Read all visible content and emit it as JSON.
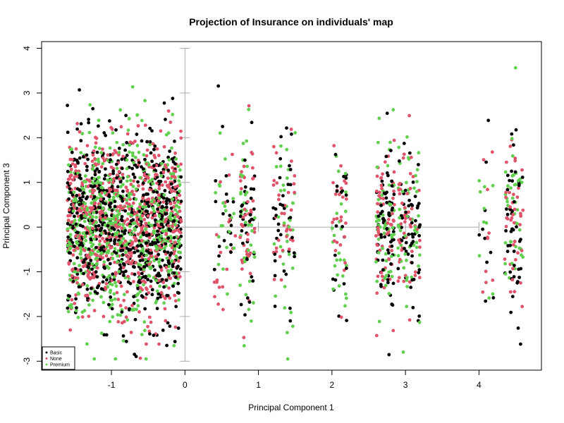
{
  "chart_data": {
    "type": "scatter",
    "title": "Projection of Insurance on individuals' map",
    "xlabel": "Principal Component 1",
    "ylabel": "Principal Component 3",
    "xlim": [
      -1.95,
      4.85
    ],
    "ylim": [
      -3.2,
      4.15
    ],
    "x_ticks": [
      -1,
      0,
      1,
      2,
      3,
      4
    ],
    "y_ticks": [
      -3,
      -2,
      -1,
      0,
      1,
      2,
      3,
      4
    ],
    "x_tick_labels": [
      "-1",
      "0",
      "1",
      "2",
      "3",
      "4"
    ],
    "y_tick_labels": [
      "-3",
      "-2",
      "-1",
      "0",
      "1",
      "2",
      "3",
      "4"
    ],
    "grid": false,
    "legend_position": "bottom-left",
    "legend": [
      {
        "name": "Basic",
        "color": "#000000"
      },
      {
        "name": "None",
        "color": "#DF536B"
      },
      {
        "name": "Premium",
        "color": "#61D04F"
      }
    ],
    "axis_lines": {
      "color": "#aaaaaa",
      "vertical_x": 0,
      "vertical_y_range": [
        -3,
        4
      ],
      "horizontal_y": 0,
      "horizontal_x_range": [
        0,
        4
      ]
    },
    "series": [
      {
        "name": "Basic",
        "color": "#000000",
        "clusters": [
          {
            "x_range": [
              -1.6,
              -0.05
            ],
            "y_mean": 0,
            "y_sd": 1,
            "count": 700
          },
          {
            "x_range": [
              0.4,
              0.7
            ],
            "y_mean": 0,
            "y_sd": 1,
            "count": 20
          },
          {
            "x_range": [
              0.75,
              0.95
            ],
            "y_mean": 0,
            "y_sd": 1,
            "count": 35
          },
          {
            "x_range": [
              1.2,
              1.5
            ],
            "y_mean": 0,
            "y_sd": 1,
            "count": 35
          },
          {
            "x_range": [
              2.0,
              2.2
            ],
            "y_mean": 0,
            "y_sd": 1,
            "count": 20
          },
          {
            "x_range": [
              2.6,
              2.85
            ],
            "y_mean": 0,
            "y_sd": 1,
            "count": 70
          },
          {
            "x_range": [
              2.9,
              3.2
            ],
            "y_mean": 0,
            "y_sd": 1,
            "count": 55
          },
          {
            "x_range": [
              4.0,
              4.2
            ],
            "y_mean": 0,
            "y_sd": 1,
            "count": 10
          },
          {
            "x_range": [
              4.35,
              4.6
            ],
            "y_mean": 0,
            "y_sd": 1,
            "count": 45
          }
        ]
      },
      {
        "name": "None",
        "color": "#DF536B",
        "clusters": [
          {
            "x_range": [
              -1.6,
              -0.05
            ],
            "y_mean": 0,
            "y_sd": 1,
            "count": 650
          },
          {
            "x_range": [
              0.4,
              0.7
            ],
            "y_mean": 0,
            "y_sd": 1,
            "count": 20
          },
          {
            "x_range": [
              0.75,
              0.95
            ],
            "y_mean": 0,
            "y_sd": 1,
            "count": 40
          },
          {
            "x_range": [
              1.2,
              1.5
            ],
            "y_mean": 0,
            "y_sd": 1,
            "count": 35
          },
          {
            "x_range": [
              2.0,
              2.2
            ],
            "y_mean": 0,
            "y_sd": 1,
            "count": 25
          },
          {
            "x_range": [
              2.6,
              2.85
            ],
            "y_mean": 0,
            "y_sd": 1,
            "count": 60
          },
          {
            "x_range": [
              2.9,
              3.2
            ],
            "y_mean": 0,
            "y_sd": 1,
            "count": 50
          },
          {
            "x_range": [
              4.0,
              4.2
            ],
            "y_mean": 0,
            "y_sd": 1,
            "count": 10
          },
          {
            "x_range": [
              4.35,
              4.6
            ],
            "y_mean": 0,
            "y_sd": 1,
            "count": 40
          }
        ]
      },
      {
        "name": "Premium",
        "color": "#61D04F",
        "clusters": [
          {
            "x_range": [
              -1.6,
              -0.05
            ],
            "y_mean": 0,
            "y_sd": 1,
            "count": 650
          },
          {
            "x_range": [
              0.4,
              0.7
            ],
            "y_mean": 0,
            "y_sd": 1,
            "count": 20
          },
          {
            "x_range": [
              0.75,
              0.95
            ],
            "y_mean": 0,
            "y_sd": 1,
            "count": 40
          },
          {
            "x_range": [
              1.2,
              1.5
            ],
            "y_mean": 0,
            "y_sd": 1,
            "count": 35
          },
          {
            "x_range": [
              2.0,
              2.2
            ],
            "y_mean": 0,
            "y_sd": 1,
            "count": 25
          },
          {
            "x_range": [
              2.6,
              2.85
            ],
            "y_mean": 0,
            "y_sd": 1,
            "count": 60
          },
          {
            "x_range": [
              2.9,
              3.2
            ],
            "y_mean": 0,
            "y_sd": 1,
            "count": 50
          },
          {
            "x_range": [
              4.0,
              4.2
            ],
            "y_mean": 0,
            "y_sd": 1,
            "count": 10
          },
          {
            "x_range": [
              4.35,
              4.6
            ],
            "y_mean": 0,
            "y_sd": 1,
            "count": 40
          }
        ]
      }
    ]
  }
}
